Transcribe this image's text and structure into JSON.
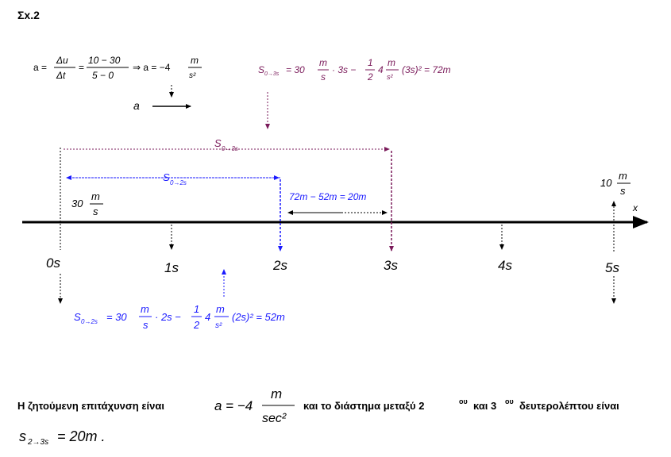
{
  "heading": "Σx.2",
  "accel_formula": {
    "a_lhs": "a =",
    "du": "Δu",
    "dt": "Δt",
    "eq": "=",
    "num": "10 − 30",
    "den": "5 − 0",
    "implies": "⇒ a = −4",
    "unit_num": "m",
    "unit_den": "s²"
  },
  "accel_vector_label": "a",
  "s3_formula": {
    "lhs_main": "S",
    "lhs_sub": "0→3s",
    "eq1": "= 30",
    "u1_num": "m",
    "u1_den": "s",
    "mid1": "· 3s −",
    "half_num": "1",
    "half_den": "2",
    "four": "4",
    "u2_num": "m",
    "u2_den": "s²",
    "tail": "(3s)² = 72m"
  },
  "s2_formula": {
    "lhs_main": "S",
    "lhs_sub": "0→2s",
    "eq1": "= 30",
    "u1_num": "m",
    "u1_den": "s",
    "mid1": "· 2s −",
    "half_num": "1",
    "half_den": "2",
    "four": "4",
    "u2_num": "m",
    "u2_den": "s²",
    "tail": "(2s)² = 52m"
  },
  "dist_labels": {
    "s03_main": "S",
    "s03_sub": "0→3s",
    "s02_main": "S",
    "s02_sub": "0→2s",
    "diff": "72m − 52m = 20m"
  },
  "velocity_start": {
    "value": "30",
    "num": "m",
    "den": "s"
  },
  "velocity_end": {
    "value": "10",
    "num": "m",
    "den": "s"
  },
  "axis_label": "x",
  "time_labels": [
    "0s",
    "1s",
    "2s",
    "3s",
    "4s",
    "5s"
  ],
  "conclusion": {
    "part1": "Η ζητούμενη επιτάχυνση είναι",
    "a_eq": "a = −4",
    "unit_num": "m",
    "unit_den": "sec²",
    "part2": "και το διάστημα μεταξύ 2",
    "sup1": "ου",
    "part3": "και 3",
    "sup2": "ου",
    "part4": "δευτερολέπτου είναι",
    "s_main": "s",
    "s_sub": "2→3s",
    "s_rest": "= 20m ."
  },
  "colors": {
    "black": "#000000",
    "blue": "#1a1aff",
    "purple": "#7a1a5a"
  }
}
